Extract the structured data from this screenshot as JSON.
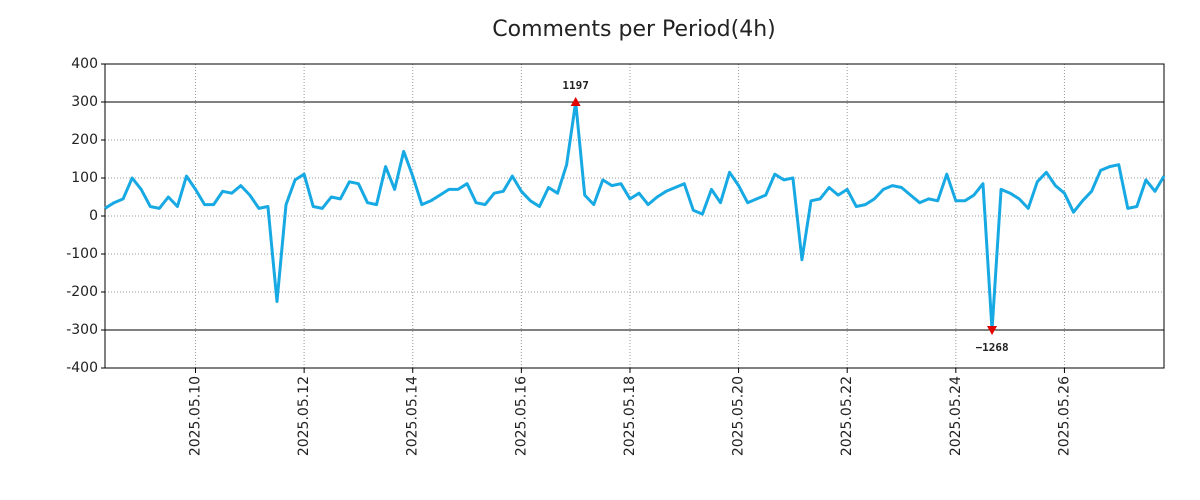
{
  "chart_data": {
    "type": "line",
    "title": "Comments per Period(4h)",
    "x": [
      8.3333,
      8.5,
      8.6667,
      8.8333,
      9,
      9.1667,
      9.3333,
      9.5,
      9.6667,
      9.8333,
      10,
      10.1667,
      10.3333,
      10.5,
      10.6667,
      10.8333,
      11,
      11.1667,
      11.3333,
      11.5,
      11.6667,
      11.8333,
      12,
      12.1667,
      12.3333,
      12.5,
      12.6667,
      12.8333,
      13,
      13.1667,
      13.3333,
      13.5,
      13.6667,
      13.8333,
      14,
      14.1667,
      14.3333,
      14.5,
      14.6667,
      14.8333,
      15,
      15.1667,
      15.3333,
      15.5,
      15.6667,
      15.8333,
      16,
      16.1667,
      16.3333,
      16.5,
      16.6667,
      16.8333,
      17,
      17.1667,
      17.3333,
      17.5,
      17.6667,
      17.8333,
      18,
      18.1667,
      18.3333,
      18.5,
      18.6667,
      18.8333,
      19,
      19.1667,
      19.3333,
      19.5,
      19.6667,
      19.8333,
      20,
      20.1667,
      20.3333,
      20.5,
      20.6667,
      20.8333,
      21,
      21.1667,
      21.3333,
      21.5,
      21.6667,
      21.8333,
      22,
      22.1667,
      22.3333,
      22.5,
      22.6667,
      22.8333,
      23,
      23.1667,
      23.3333,
      23.5,
      23.6667,
      23.8333,
      24,
      24.1667,
      24.3333,
      24.5,
      24.6667,
      24.8333,
      25,
      25.1667,
      25.3333,
      25.5,
      25.6667,
      25.8333,
      26,
      26.1667,
      26.3333,
      26.5,
      26.6667,
      26.8333,
      27,
      27.1667,
      27.3333,
      27.5,
      27.6667,
      27.8333
    ],
    "series": [
      {
        "color": "#17a9e3",
        "values": [
          20,
          35,
          45,
          100,
          70,
          25,
          20,
          50,
          25,
          105,
          70,
          30,
          30,
          65,
          60,
          80,
          55,
          20,
          25,
          -225,
          30,
          95,
          110,
          25,
          20,
          50,
          45,
          90,
          85,
          35,
          30,
          130,
          70,
          170,
          105,
          30,
          40,
          55,
          70,
          70,
          85,
          35,
          30,
          60,
          65,
          105,
          65,
          40,
          25,
          75,
          60,
          135,
          300,
          55,
          30,
          95,
          80,
          85,
          45,
          60,
          30,
          50,
          65,
          75,
          85,
          15,
          5,
          70,
          35,
          115,
          80,
          35,
          45,
          55,
          110,
          95,
          100,
          -115,
          40,
          45,
          75,
          55,
          70,
          25,
          30,
          45,
          70,
          80,
          75,
          55,
          35,
          45,
          40,
          110,
          40,
          40,
          55,
          85,
          -300,
          70,
          60,
          45,
          20,
          90,
          115,
          80,
          60,
          10,
          40,
          65,
          120,
          130,
          135,
          20,
          25,
          95,
          65,
          105
        ]
      }
    ],
    "annotations": [
      {
        "x": 17,
        "y": 300,
        "text": "1197",
        "marker_color": "#e00000",
        "direction": "up"
      },
      {
        "x": 24.6667,
        "y": -300,
        "text": "−1268",
        "marker_color": "#e00000",
        "direction": "down"
      }
    ],
    "reference_lines": [
      300,
      -300
    ],
    "xlim": [
      8.3333,
      27.8333
    ],
    "xticks": [
      {
        "value": 10,
        "label": "2025.05.10"
      },
      {
        "value": 12,
        "label": "2025.05.12"
      },
      {
        "value": 14,
        "label": "2025.05.14"
      },
      {
        "value": 16,
        "label": "2025.05.16"
      },
      {
        "value": 18,
        "label": "2025.05.18"
      },
      {
        "value": 20,
        "label": "2025.05.20"
      },
      {
        "value": 22,
        "label": "2025.05.22"
      },
      {
        "value": 24,
        "label": "2025.05.24"
      },
      {
        "value": 26,
        "label": "2025.05.26"
      }
    ],
    "ylim": [
      -400,
      400
    ],
    "yticks": [
      -400,
      -300,
      -200,
      -100,
      0,
      100,
      200,
      300,
      400
    ],
    "grid": true
  }
}
